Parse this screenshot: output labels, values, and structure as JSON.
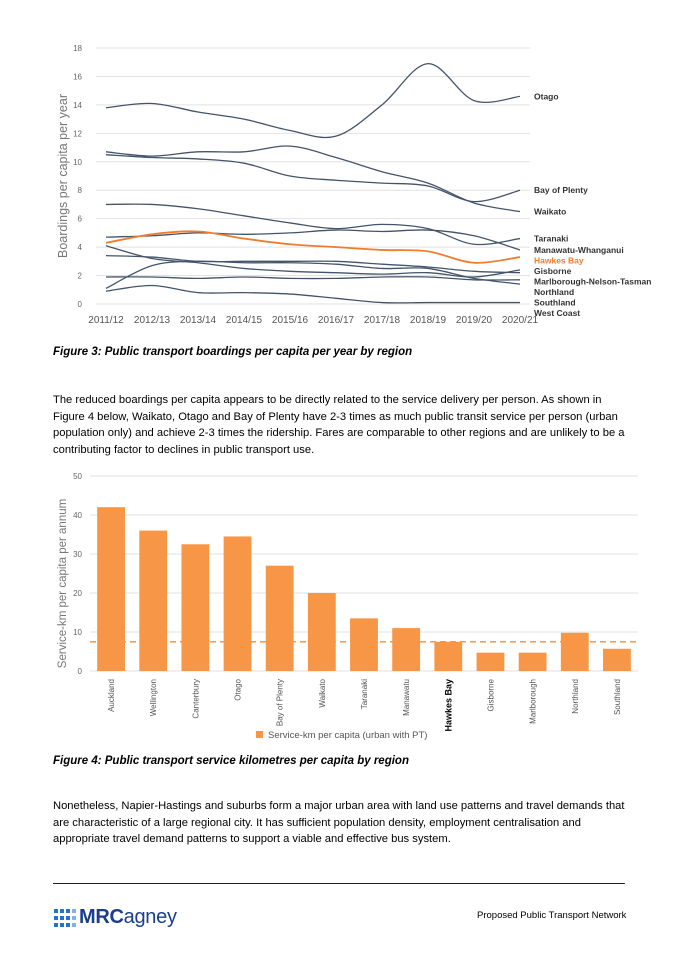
{
  "chart_data": [
    {
      "type": "line",
      "title": "",
      "xlabel": "",
      "ylabel": "Boardings per capita per year",
      "ylim": [
        0,
        18
      ],
      "yticks": [
        0,
        2,
        4,
        6,
        8,
        10,
        12,
        14,
        16,
        18
      ],
      "categories": [
        "2011/12",
        "2012/13",
        "2013/14",
        "2014/15",
        "2015/16",
        "2016/17",
        "2017/18",
        "2018/19",
        "2019/20",
        "2020/21"
      ],
      "grid": true,
      "legend": "end-of-line labels",
      "series": [
        {
          "name": "Otago",
          "values": [
            13.8,
            14.1,
            13.5,
            13.0,
            12.2,
            11.8,
            14.0,
            16.9,
            14.3,
            14.6
          ],
          "color": "#44546a"
        },
        {
          "name": "Bay of Plenty",
          "values": [
            10.5,
            10.3,
            10.2,
            9.9,
            9.0,
            8.7,
            8.5,
            8.3,
            7.2,
            8.0
          ],
          "color": "#44546a"
        },
        {
          "name": "Waikato",
          "values": [
            10.7,
            10.4,
            10.7,
            10.7,
            11.1,
            10.3,
            9.3,
            8.5,
            7.1,
            6.5
          ],
          "color": "#44546a"
        },
        {
          "name": "Taranaki",
          "values": [
            7.0,
            7.0,
            6.7,
            6.2,
            5.7,
            5.3,
            5.6,
            5.3,
            4.2,
            4.6
          ],
          "color": "#44546a"
        },
        {
          "name": "Manawatu-Whanganui",
          "values": [
            4.7,
            4.8,
            5.0,
            4.9,
            5.0,
            5.2,
            5.1,
            5.2,
            4.8,
            3.8
          ],
          "color": "#44546a"
        },
        {
          "name": "Hawkes Bay",
          "values": [
            4.3,
            4.9,
            5.1,
            4.6,
            4.2,
            4.0,
            3.8,
            3.7,
            2.9,
            3.3
          ],
          "color": "#ed7d31"
        },
        {
          "name": "Gisborne",
          "values": [
            4.1,
            3.2,
            2.9,
            2.5,
            2.3,
            2.2,
            2.1,
            2.2,
            1.9,
            2.4
          ],
          "color": "#44546a"
        },
        {
          "name": "Marlborough-Nelson-Tasman",
          "values": [
            3.4,
            3.3,
            3.0,
            3.0,
            3.0,
            3.0,
            2.8,
            2.6,
            2.3,
            2.2
          ],
          "color": "#44546a"
        },
        {
          "name": "Northland",
          "values": [
            1.9,
            1.9,
            1.8,
            1.9,
            1.8,
            1.8,
            1.9,
            1.9,
            1.7,
            1.7
          ],
          "color": "#44546a"
        },
        {
          "name": "Southland",
          "values": [
            1.1,
            2.7,
            3.0,
            2.9,
            2.9,
            2.8,
            2.5,
            2.5,
            1.8,
            1.4
          ],
          "color": "#44546a"
        },
        {
          "name": "West Coast",
          "values": [
            0.9,
            1.3,
            0.8,
            0.8,
            0.7,
            0.4,
            0.1,
            0.1,
            0.1,
            0.1
          ],
          "color": "#44546a"
        }
      ]
    },
    {
      "type": "bar",
      "title": "",
      "xlabel": "",
      "ylabel": "Service-km per capita per annum",
      "ylim": [
        0,
        50
      ],
      "yticks": [
        0,
        10,
        20,
        30,
        40,
        50
      ],
      "categories": [
        "Auckland",
        "Wellington",
        "Canterbury",
        "Otago",
        "Bay of Plenty",
        "Waikato",
        "Taranaki",
        "Manawatu",
        "Hawkes Bay",
        "Gisborne",
        "Marlborough",
        "Northland",
        "Southland"
      ],
      "highlight_category": "Hawkes Bay",
      "series": [
        {
          "name": "Service-km per capita (urban with PT)",
          "values": [
            42,
            36,
            32.5,
            34.5,
            27,
            20,
            13.5,
            11,
            7.5,
            4.7,
            4.7,
            9.8,
            5.7
          ],
          "color": "#f79646"
        }
      ],
      "reference_line": {
        "value": 7.5,
        "style": "dashed",
        "color": "#f79646"
      },
      "grid": true,
      "legend": "bottom"
    }
  ],
  "captions": {
    "fig3": "Figure 3: Public transport boardings per capita per year by region",
    "fig4": "Figure 4: Public transport service kilometres per capita by region"
  },
  "paragraphs": {
    "p1": "The reduced boardings per capita appears to be directly related to the service delivery per person. As shown in Figure 4 below, Waikato, Otago and Bay of Plenty have 2-3 times as much public transit service per person (urban population only) and achieve 2-3 times the ridership. Fares are comparable to other regions and are unlikely to be a contributing factor to declines in public transport use.",
    "p2": "Nonetheless, Napier-Hastings and suburbs form a major urban area with land use patterns and travel demands that are characteristic of a large regional city. It has sufficient population density, employment centralisation and appropriate travel demand patterns to support a viable and effective bus system."
  },
  "footer": {
    "logo_bold": "MRC",
    "logo_light": "agney",
    "right_text": "Proposed Public Transport Network"
  }
}
